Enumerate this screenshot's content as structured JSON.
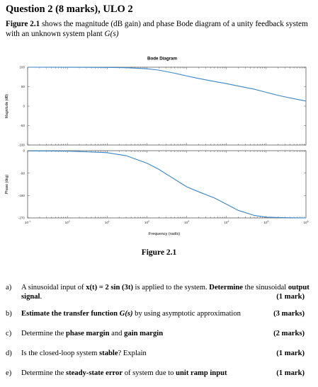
{
  "header": {
    "title": "Question 2 (8 marks), ULO 2"
  },
  "intro": {
    "figure_ref": "Figure 2.1",
    "text_a": " shows the magnitude (dB gain) and phase Bode diagram of a unity feedback system with an unknown system plant ",
    "plant": "G(s)"
  },
  "figure": {
    "caption": "Figure 2.1"
  },
  "chart_data": {
    "type": "line",
    "title": "Bode Diagram",
    "xlabel": "Frequency (rad/s)",
    "xscale": "log",
    "xlim": [
      0.1,
      1000000
    ],
    "x_ticks": [
      {
        "base": "10",
        "exp": "-1"
      },
      {
        "base": "10",
        "exp": "0"
      },
      {
        "base": "10",
        "exp": "1"
      },
      {
        "base": "10",
        "exp": "2"
      },
      {
        "base": "10",
        "exp": "3"
      },
      {
        "base": "10",
        "exp": "4"
      },
      {
        "base": "10",
        "exp": "5"
      },
      {
        "base": "10",
        "exp": "6"
      }
    ],
    "grid": false,
    "color": "#3a86c8",
    "panels": [
      {
        "name": "magnitude",
        "ylabel": "Magnitude (dB)",
        "ylim": [
          -100,
          100
        ],
        "yticks": [
          "100",
          "50",
          "0",
          "-50",
          "-100"
        ],
        "ytick_values": [
          100,
          50,
          0,
          -50,
          -100
        ],
        "x": [
          0.1,
          1,
          10,
          30,
          100,
          200,
          500,
          1000,
          2000,
          5000,
          10000,
          20000,
          50000,
          100000,
          200000,
          500000,
          1000000
        ],
        "y": [
          100,
          99.9,
          99.5,
          98.7,
          96,
          92.5,
          84.5,
          77.5,
          71,
          63.3,
          57.8,
          51.5,
          43.5,
          35.5,
          27.5,
          19,
          13
        ]
      },
      {
        "name": "phase",
        "ylabel": "Phase (deg)",
        "ylim": [
          -270,
          0
        ],
        "yticks": [
          "0",
          "-90",
          "-180",
          "-270"
        ],
        "ytick_values": [
          0,
          -90,
          -180,
          -270
        ],
        "x": [
          0.1,
          1,
          10,
          30,
          100,
          200,
          500,
          1000,
          2000,
          5000,
          10000,
          20000,
          50000,
          100000,
          300000,
          1000000
        ],
        "y": [
          -1,
          -1.5,
          -8,
          -20,
          -50,
          -75,
          -115,
          -145,
          -165,
          -190,
          -215,
          -240,
          -260,
          -267,
          -269,
          -270
        ]
      }
    ]
  },
  "questions": [
    {
      "label": "a)",
      "parts": [
        {
          "t": "A sinusoidal input of ",
          "s": ""
        },
        {
          "t": "x(t) = 2 sin (3t)",
          "s": "b"
        },
        {
          "t": " is applied to the system. ",
          "s": ""
        },
        {
          "t": "Determine",
          "s": "b"
        },
        {
          "t": " the sinusoidal ",
          "s": ""
        },
        {
          "t": "output signal",
          "s": "b"
        },
        {
          "t": ".",
          "s": ""
        }
      ],
      "marks": "(1 mark)"
    },
    {
      "label": "b)",
      "parts": [
        {
          "t": "Estimate the transfer function ",
          "s": "b"
        },
        {
          "t": "G(s)",
          "s": "bi"
        },
        {
          "t": " by using asymptotic approximation",
          "s": ""
        }
      ],
      "marks": "(3 marks)"
    },
    {
      "label": "c)",
      "parts": [
        {
          "t": "Determine the ",
          "s": ""
        },
        {
          "t": "phase margin",
          "s": "b"
        },
        {
          "t": " and ",
          "s": ""
        },
        {
          "t": "gain margin",
          "s": "b"
        }
      ],
      "marks": "(2 marks)"
    },
    {
      "label": "d)",
      "parts": [
        {
          "t": "Is the closed-loop system ",
          "s": ""
        },
        {
          "t": "stable",
          "s": "b"
        },
        {
          "t": "? Explain",
          "s": ""
        }
      ],
      "marks": "(1 mark)"
    },
    {
      "label": "e)",
      "parts": [
        {
          "t": "Determine the ",
          "s": ""
        },
        {
          "t": "steady-state error",
          "s": "b"
        },
        {
          "t": " of system due to ",
          "s": ""
        },
        {
          "t": "unit ramp input",
          "s": "b"
        }
      ],
      "marks": "(1 mark)"
    }
  ]
}
